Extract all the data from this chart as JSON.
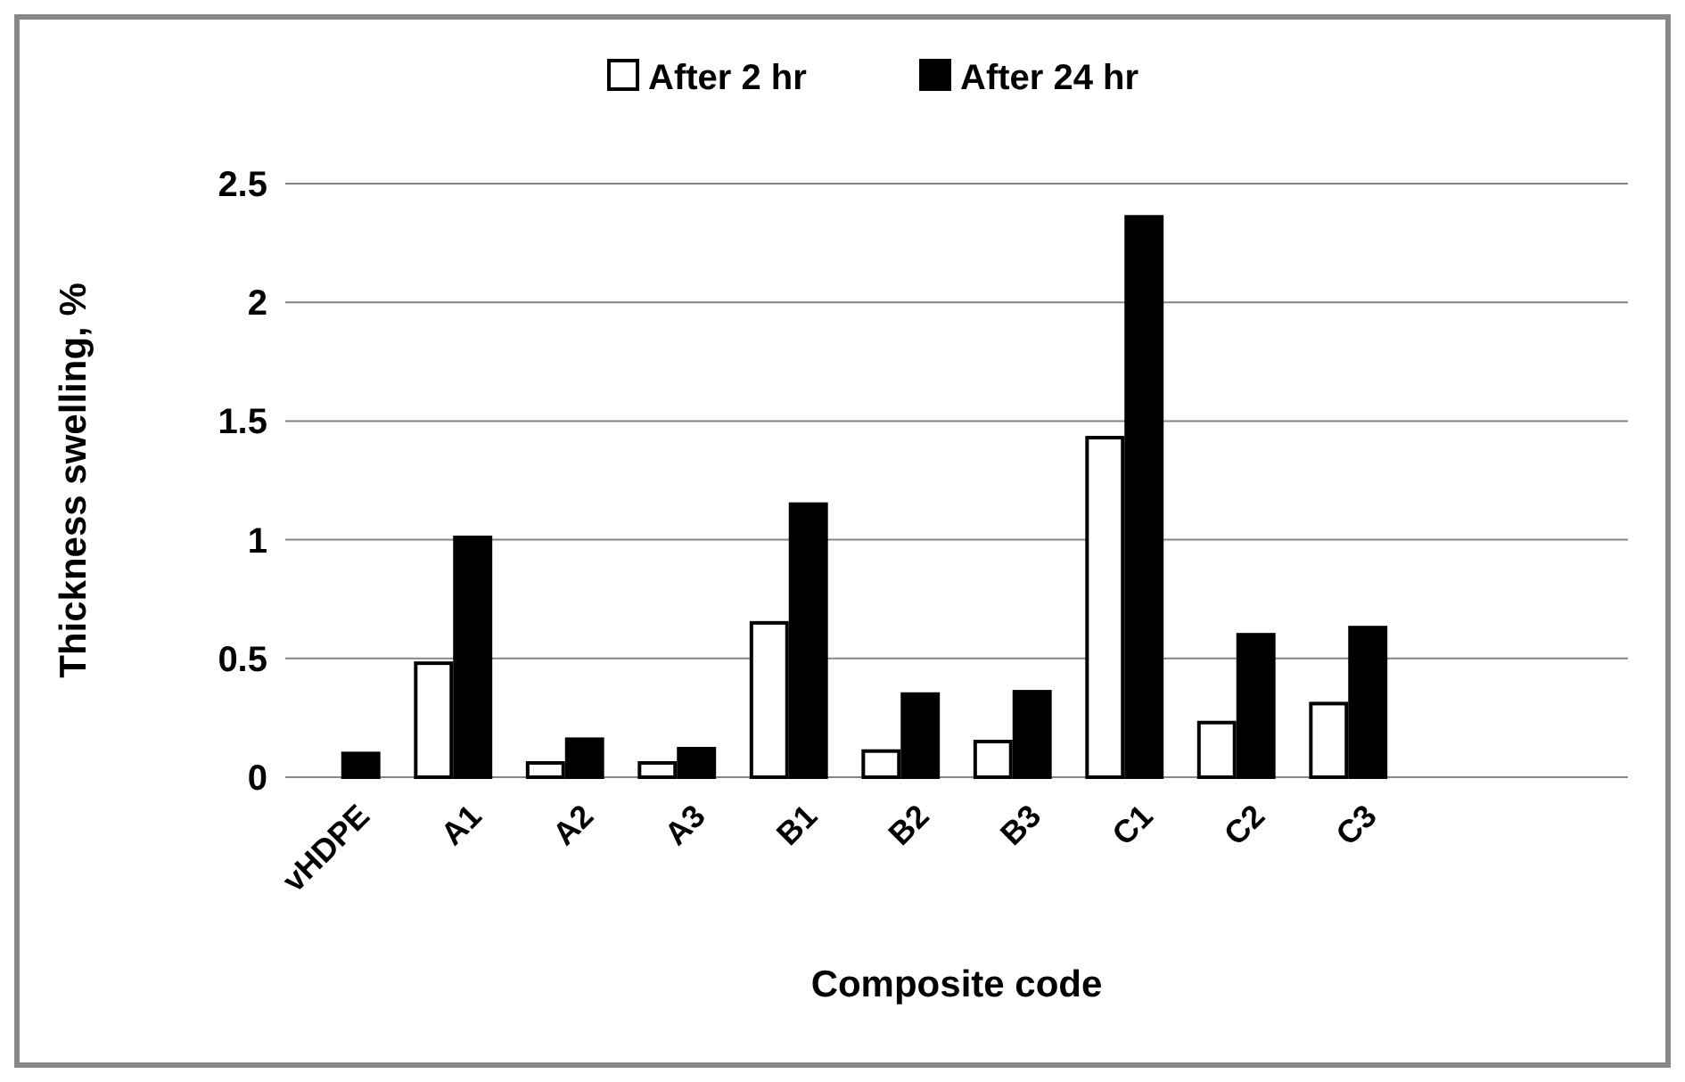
{
  "chart_data": {
    "type": "bar",
    "xlabel": "Composite code",
    "ylabel": "Thickness swelling, %",
    "categories": [
      "vHDPE",
      "A1",
      "A2",
      "A3",
      "B1",
      "B2",
      "B3",
      "C1",
      "C2",
      "C3",
      null,
      null
    ],
    "series": [
      {
        "name": "After 2 hr",
        "color": "#ffffff",
        "values": [
          0,
          0.48,
          0.06,
          0.06,
          0.65,
          0.11,
          0.15,
          1.43,
          0.23,
          0.31,
          null,
          null
        ]
      },
      {
        "name": "After 24 hr",
        "color": "#000000",
        "values": [
          0.1,
          1.01,
          0.16,
          0.12,
          1.15,
          0.35,
          0.36,
          2.36,
          0.6,
          0.63,
          null,
          null
        ]
      }
    ],
    "ylim": [
      0,
      2.5
    ],
    "yticks": [
      0,
      0.5,
      1,
      1.5,
      2,
      2.5
    ],
    "grid": "y",
    "legend": "top"
  }
}
